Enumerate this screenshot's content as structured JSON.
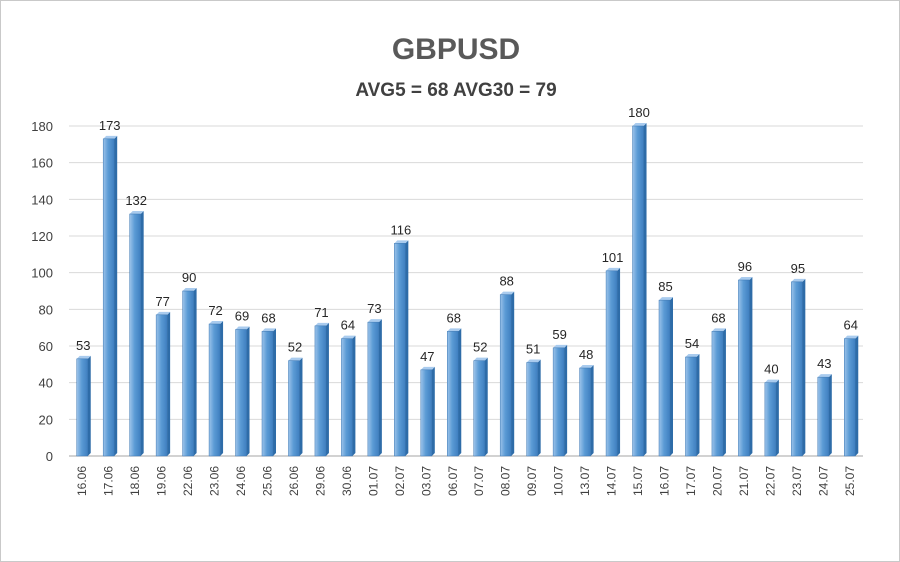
{
  "chart_data": {
    "type": "bar",
    "title": "GBPUSD",
    "subtitle": "AVG5 = 68 AVG30 = 79",
    "xlabel": "",
    "ylabel": "",
    "ylim": [
      0,
      180
    ],
    "yticks": [
      0,
      20,
      40,
      60,
      80,
      100,
      120,
      140,
      160,
      180
    ],
    "grid": true,
    "legend": "none",
    "bar_color": "#5b9bd5",
    "bar_dark_color": "#2e6ca8",
    "categories": [
      "16.06",
      "17.06",
      "18.06",
      "19.06",
      "22.06",
      "23.06",
      "24.06",
      "25.06",
      "26.06",
      "29.06",
      "30.06",
      "01.07",
      "02.07",
      "03.07",
      "06.07",
      "07.07",
      "08.07",
      "09.07",
      "10.07",
      "13.07",
      "14.07",
      "15.07",
      "16.07",
      "17.07",
      "20.07",
      "21.07",
      "22.07",
      "23.07",
      "24.07",
      "25.07"
    ],
    "values": [
      53,
      173,
      132,
      77,
      90,
      72,
      69,
      68,
      52,
      71,
      64,
      73,
      116,
      47,
      68,
      52,
      88,
      51,
      59,
      48,
      101,
      180,
      85,
      54,
      68,
      96,
      40,
      95,
      43,
      64
    ],
    "data_labels": [
      "53",
      "173",
      "132",
      "77",
      "90",
      "72",
      "69",
      "68",
      "52",
      "71",
      "64",
      "73",
      "116",
      "47",
      "68",
      "52",
      "88",
      "51",
      "59",
      "48",
      "101",
      "180",
      "85",
      "54",
      "68",
      "96",
      "40",
      "95",
      "43",
      "64"
    ]
  }
}
